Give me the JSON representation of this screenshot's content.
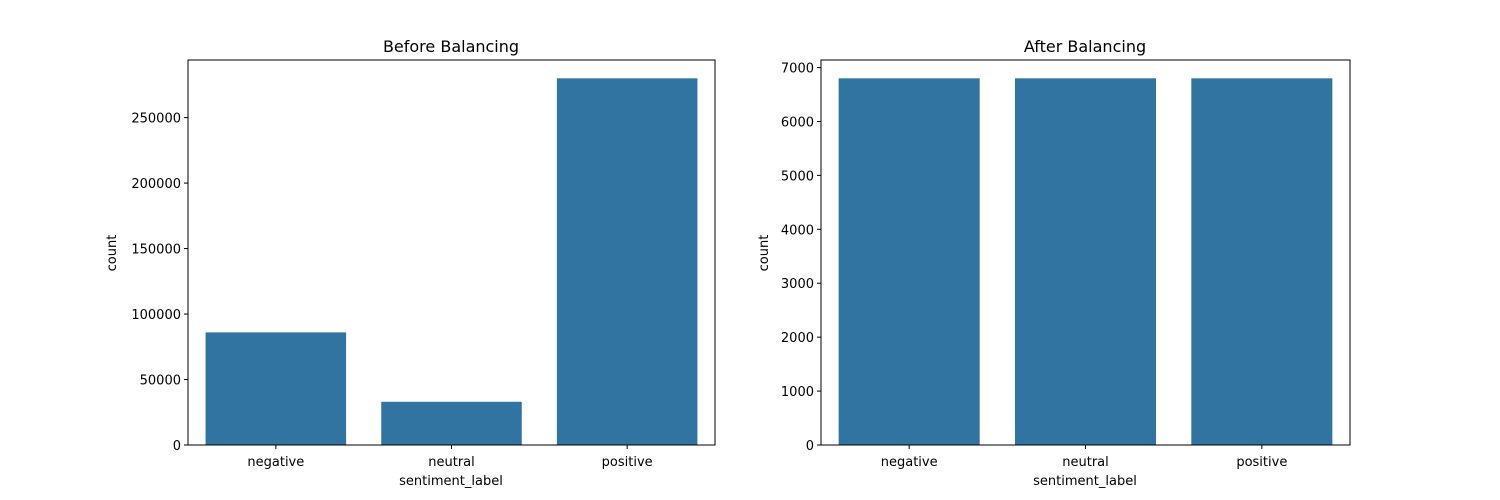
{
  "chart_data": [
    {
      "type": "bar",
      "title": "Before Balancing",
      "xlabel": "sentiment_label",
      "ylabel": "count",
      "categories": [
        "negative",
        "neutral",
        "positive"
      ],
      "values": [
        86000,
        33000,
        280000
      ],
      "ylim": [
        0,
        294000
      ],
      "yticks": [
        0,
        50000,
        100000,
        150000,
        200000,
        250000
      ],
      "ytick_labels": [
        "0",
        "50000",
        "100000",
        "150000",
        "200000",
        "250000"
      ],
      "bar_color": "#3274a1",
      "grid": false
    },
    {
      "type": "bar",
      "title": "After Balancing",
      "xlabel": "sentiment_label",
      "ylabel": "count",
      "categories": [
        "negative",
        "neutral",
        "positive"
      ],
      "values": [
        6800,
        6800,
        6800
      ],
      "ylim": [
        0,
        7140
      ],
      "yticks": [
        0,
        1000,
        2000,
        3000,
        4000,
        5000,
        6000,
        7000
      ],
      "ytick_labels": [
        "0",
        "1000",
        "2000",
        "3000",
        "4000",
        "5000",
        "6000",
        "7000"
      ],
      "bar_color": "#3274a1",
      "grid": false
    }
  ]
}
